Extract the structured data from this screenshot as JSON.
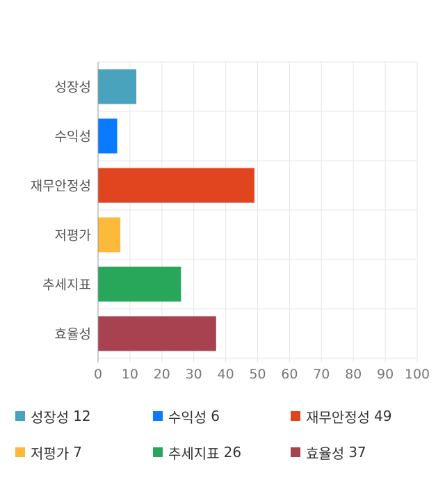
{
  "chart_data": {
    "type": "bar",
    "orientation": "horizontal",
    "categories": [
      "성장성",
      "수익성",
      "재무안정성",
      "저평가",
      "추세지표",
      "효율성"
    ],
    "values": [
      12,
      6,
      49,
      7,
      26,
      37
    ],
    "colors": [
      "#4aa3bd",
      "#0a7bff",
      "#e0451f",
      "#fdb93a",
      "#28a659",
      "#a84251"
    ],
    "xlim": [
      0,
      100
    ],
    "xticks": [
      "0",
      "10",
      "20",
      "30",
      "40",
      "50",
      "60",
      "70",
      "80",
      "90",
      "100"
    ],
    "grid": true,
    "legend_position": "bottom"
  },
  "legend": [
    {
      "label": "성장성",
      "value": "12",
      "color": "#4aa3bd"
    },
    {
      "label": "수익성",
      "value": "6",
      "color": "#0a7bff"
    },
    {
      "label": "재무안정성",
      "value": "49",
      "color": "#e0451f"
    },
    {
      "label": "저평가",
      "value": "7",
      "color": "#fdb93a"
    },
    {
      "label": "추세지표",
      "value": "26",
      "color": "#28a659"
    },
    {
      "label": "효율성",
      "value": "37",
      "color": "#a84251"
    }
  ]
}
